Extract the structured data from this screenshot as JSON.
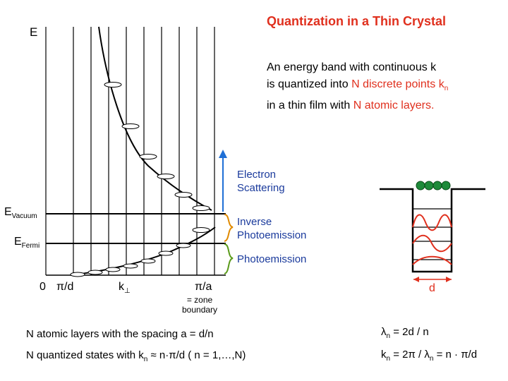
{
  "title": "Quantization in a Thin Crystal",
  "energy_axis": "E",
  "description": {
    "line1": "An energy band with continuous k",
    "line2_pre": "is quantized into ",
    "line2_red": "N discrete points k",
    "line2_sub": "n",
    "line3_pre": "in a thin film with ",
    "line3_red": "N atomic layers."
  },
  "labels": {
    "electron_scattering": [
      "Electron",
      "Scattering"
    ],
    "inverse_photoemission": [
      "Inverse",
      "Photoemission"
    ],
    "photoemission": "Photoemission",
    "e_vacuum_main": "E",
    "e_vacuum_sub": "Vacuum",
    "e_fermi_main": "E",
    "e_fermi_sub": "Fermi",
    "x_zero": "0",
    "x_pi_d": "π/d",
    "x_k_main": "k",
    "x_k_sub": "⊥",
    "x_pi_a": "π/a",
    "zone_boundary": [
      "= zone",
      "boundary"
    ],
    "well_width": "d"
  },
  "equations": {
    "spacing": "N atomic layers with the spacing  a = d/n",
    "states_pre": "N quantized states with  k",
    "states_sub": "n",
    "states_post": " ≈ n·π/d   ( n = 1,…,N)",
    "lambda1_main": "λ",
    "lambda1_sub": "n",
    "lambda1_post": " = 2d / n",
    "k2_main": "k",
    "k2_sub": "n",
    "k2_post": " = 2π / λ",
    "k2_sub2": "n",
    "k2_end": "  =  n · π/d"
  },
  "colors": {
    "accent_red": "#e0301e",
    "arrow_blue": "#1f6fd6",
    "bracket_orange": "#e08a00",
    "bracket_green": "#5a9a1a",
    "atom_green": "#1e8a3a"
  }
}
